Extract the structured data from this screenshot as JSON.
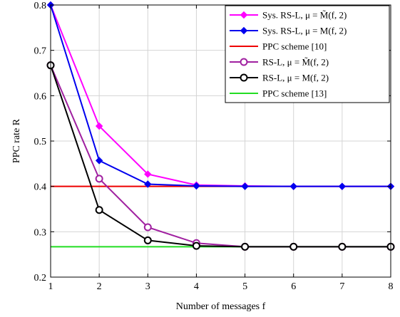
{
  "chart_data": {
    "type": "line",
    "xlabel": "Number of messages f",
    "ylabel": "PPC rate R",
    "xlim": [
      1,
      8
    ],
    "ylim": [
      0.2,
      0.8
    ],
    "xticks": [
      "1",
      "2",
      "3",
      "4",
      "5",
      "6",
      "7",
      "8"
    ],
    "yticks": [
      "0.2",
      "0.3",
      "0.4",
      "0.5",
      "0.6",
      "0.7",
      "0.8"
    ],
    "grid": true,
    "legend_position": "top-right",
    "x": [
      1,
      2,
      3,
      4,
      5,
      6,
      7,
      8
    ],
    "series": [
      {
        "name": "Sys. RS-L, μ = M̃(f, 2)",
        "color": "#ff00ff",
        "marker": "diamond",
        "marker_fill": "#ff00ff",
        "values": [
          0.8,
          0.533,
          0.427,
          0.403,
          0.401,
          0.4,
          0.4,
          0.4
        ]
      },
      {
        "name": "Sys. RS-L, μ = M(f, 2)",
        "color": "#0000ee",
        "marker": "diamond",
        "marker_fill": "#0000ee",
        "values": [
          0.8,
          0.457,
          0.405,
          0.401,
          0.4,
          0.4,
          0.4,
          0.4
        ]
      },
      {
        "name": "PPC scheme [10]",
        "color": "#ee0000",
        "marker": "none",
        "values": [
          0.4,
          0.4,
          0.4,
          0.4,
          0.4,
          0.4,
          0.4,
          0.4
        ]
      },
      {
        "name": "RS-L, μ = M̃(f, 2)",
        "color": "#a020a0",
        "marker": "circle",
        "marker_fill": "#ffffff",
        "values": [
          0.667,
          0.417,
          0.31,
          0.275,
          0.267,
          0.267,
          0.267,
          0.267
        ]
      },
      {
        "name": "RS-L, μ = M(f, 2)",
        "color": "#000000",
        "marker": "circle",
        "marker_fill": "#ffffff",
        "values": [
          0.667,
          0.348,
          0.281,
          0.269,
          0.267,
          0.267,
          0.267,
          0.267
        ]
      },
      {
        "name": "PPC scheme [13]",
        "color": "#22dd22",
        "marker": "none",
        "values": [
          0.267,
          0.267,
          0.267,
          0.267,
          0.267,
          0.267,
          0.267,
          0.267
        ]
      }
    ]
  }
}
